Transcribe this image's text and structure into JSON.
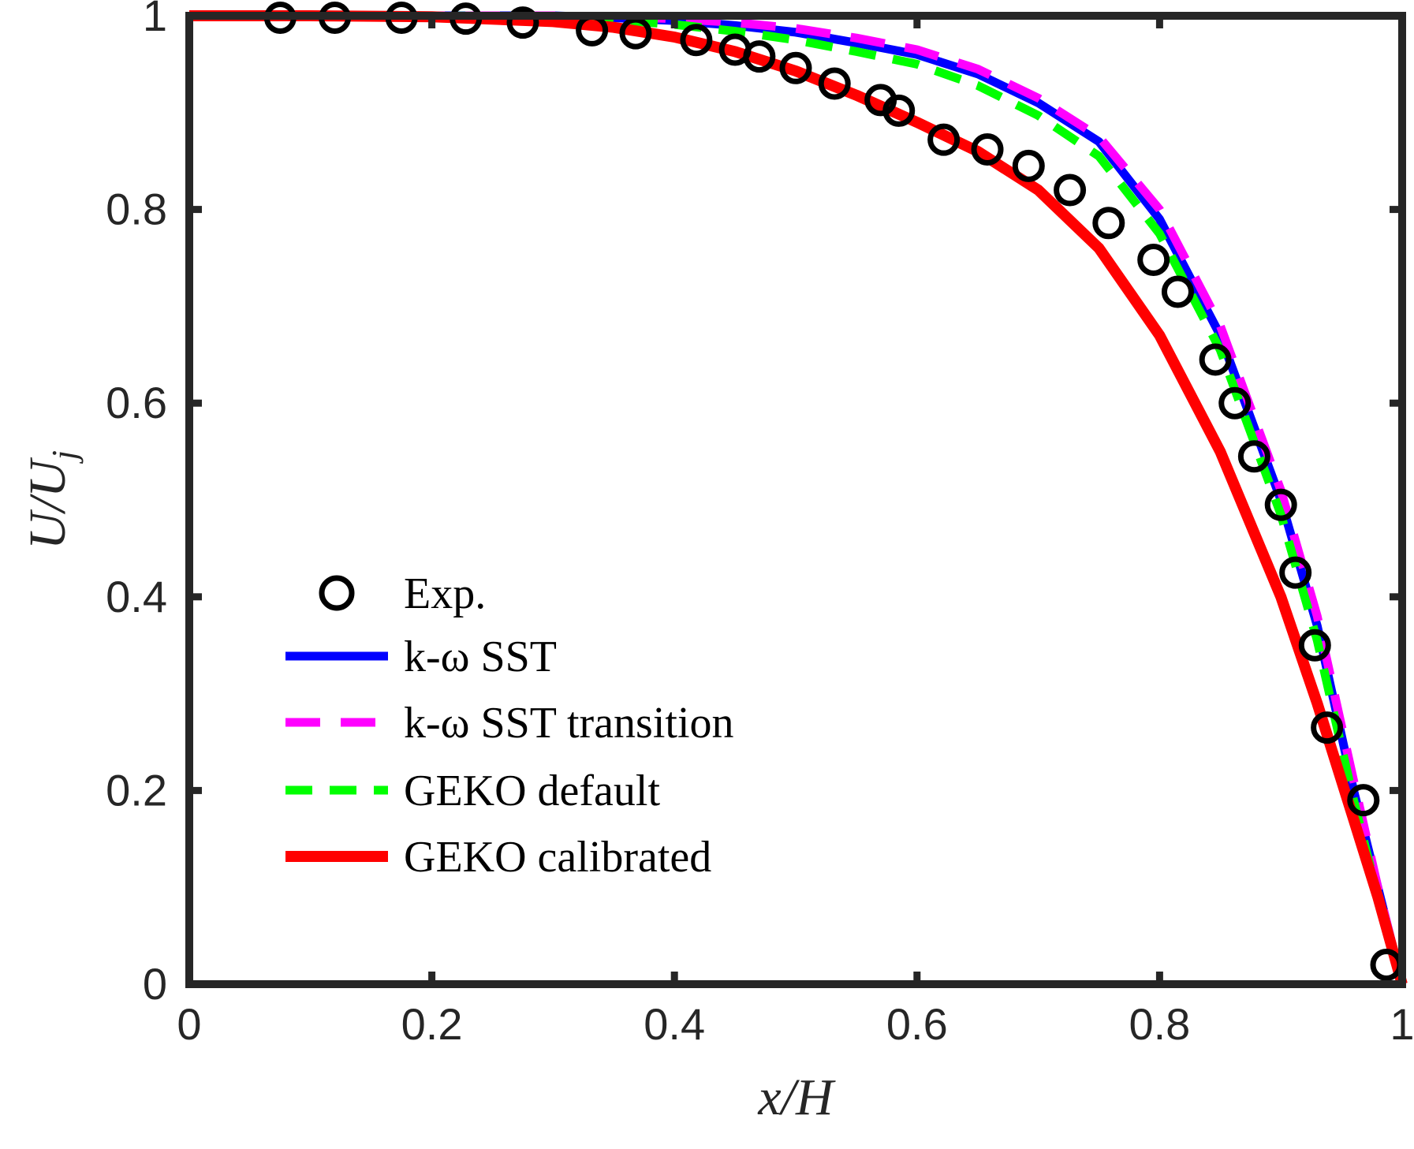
{
  "chart_data": {
    "type": "line",
    "title": "",
    "xlabel": "x/H",
    "ylabel": "U/U_j",
    "xlim": [
      0,
      1
    ],
    "ylim": [
      0,
      1
    ],
    "xticks": [
      0,
      0.2,
      0.4,
      0.6,
      0.8,
      1
    ],
    "xtick_labels": [
      "0",
      "0.2",
      "0.4",
      "0.6",
      "0.8",
      "1"
    ],
    "yticks": [
      0,
      0.2,
      0.4,
      0.6,
      0.8,
      1
    ],
    "ytick_labels": [
      "0",
      "0.2",
      "0.4",
      "0.6",
      "0.8",
      "1"
    ],
    "grid": false,
    "legend_position": "lower-left",
    "series": [
      {
        "name": "Exp.",
        "kind": "markers",
        "marker": "open-circle",
        "color": "#000000",
        "x": [
          0.075,
          0.12,
          0.175,
          0.228,
          0.275,
          0.332,
          0.368,
          0.418,
          0.45,
          0.47,
          0.5,
          0.532,
          0.57,
          0.585,
          0.622,
          0.658,
          0.692,
          0.726,
          0.758,
          0.795,
          0.815,
          0.846,
          0.862,
          0.878,
          0.9,
          0.912,
          0.928,
          0.938,
          0.968,
          0.987
        ],
        "y": [
          0.998,
          0.998,
          0.998,
          0.997,
          0.993,
          0.985,
          0.982,
          0.975,
          0.965,
          0.958,
          0.946,
          0.93,
          0.913,
          0.902,
          0.872,
          0.862,
          0.845,
          0.82,
          0.786,
          0.748,
          0.715,
          0.645,
          0.6,
          0.545,
          0.495,
          0.425,
          0.35,
          0.265,
          0.19,
          0.02
        ]
      },
      {
        "name": "k-ω SST",
        "kind": "line",
        "dash": "solid",
        "color": "#0000ff",
        "x": [
          0,
          0.1,
          0.2,
          0.3,
          0.35,
          0.4,
          0.45,
          0.5,
          0.55,
          0.6,
          0.65,
          0.7,
          0.75,
          0.8,
          0.85,
          0.9,
          0.93,
          0.96,
          0.98,
          1.0
        ],
        "y": [
          1.0,
          1.0,
          1.0,
          1.0,
          0.998,
          0.995,
          0.99,
          0.983,
          0.972,
          0.96,
          0.94,
          0.91,
          0.87,
          0.79,
          0.67,
          0.5,
          0.37,
          0.2,
          0.1,
          0.0
        ]
      },
      {
        "name": "k-ω SST transition",
        "kind": "line",
        "dash": "dashed",
        "color": "#ff00ff",
        "x": [
          0,
          0.1,
          0.2,
          0.3,
          0.35,
          0.4,
          0.45,
          0.5,
          0.55,
          0.6,
          0.65,
          0.7,
          0.75,
          0.8,
          0.85,
          0.9,
          0.93,
          0.96,
          0.98,
          1.0
        ],
        "y": [
          1.0,
          1.0,
          1.0,
          1.0,
          0.999,
          0.997,
          0.993,
          0.987,
          0.977,
          0.965,
          0.945,
          0.915,
          0.875,
          0.8,
          0.68,
          0.51,
          0.38,
          0.21,
          0.1,
          0.0
        ]
      },
      {
        "name": "GEKO default",
        "kind": "line",
        "dash": "dashed",
        "color": "#00ff00",
        "x": [
          0,
          0.1,
          0.2,
          0.3,
          0.35,
          0.4,
          0.45,
          0.5,
          0.55,
          0.6,
          0.65,
          0.7,
          0.75,
          0.8,
          0.85,
          0.9,
          0.93,
          0.96,
          0.98,
          1.0
        ],
        "y": [
          1.0,
          1.0,
          1.0,
          0.999,
          0.996,
          0.991,
          0.984,
          0.975,
          0.963,
          0.95,
          0.928,
          0.897,
          0.855,
          0.775,
          0.655,
          0.485,
          0.355,
          0.19,
          0.09,
          0.0
        ]
      },
      {
        "name": "GEKO calibrated",
        "kind": "line",
        "dash": "solid",
        "color": "#ff0000",
        "x": [
          0,
          0.1,
          0.2,
          0.3,
          0.35,
          0.4,
          0.45,
          0.5,
          0.55,
          0.6,
          0.65,
          0.7,
          0.75,
          0.8,
          0.85,
          0.9,
          0.93,
          0.96,
          0.98,
          1.0
        ],
        "y": [
          1.0,
          1.0,
          0.999,
          0.994,
          0.988,
          0.978,
          0.963,
          0.943,
          0.918,
          0.89,
          0.86,
          0.82,
          0.76,
          0.67,
          0.55,
          0.4,
          0.29,
          0.17,
          0.09,
          0.0
        ]
      }
    ]
  }
}
